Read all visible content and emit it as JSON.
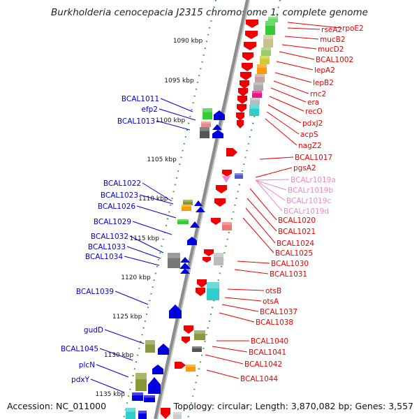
{
  "title": "Burkholderia cenocepacia J2315 chromosome 1, complete genome",
  "footer": {
    "accession": "Accession: NC_011000",
    "summary": "Topology: circular; Length: 3,870,082 bp; Genes: 3,557"
  },
  "colors": {
    "backbone": "#8c8c8c",
    "ticks": "#2e9e2e",
    "left_genes": "#0000dd",
    "right_genes": "#ee0000",
    "rna_genes": "#ee88cc"
  },
  "scale_labels": [
    "1090 kbp",
    "1095 kbp",
    "1100 kbp",
    "1105 kbp",
    "1110 kbp",
    "1115 kbp",
    "1120 kbp",
    "1125 kbp",
    "1130 kbp",
    "1135 kbp"
  ],
  "left_labels": [
    "BCAL1011",
    "efp2",
    "BCAL1013",
    "BCAL1022",
    "BCAL1023",
    "BCAL1026",
    "BCAL1029",
    "BCAL1032",
    "BCAL1033",
    "BCAL1034",
    "BCAL1039",
    "gudD",
    "BCAL1045",
    "plcN",
    "pdxY"
  ],
  "right_labels": [
    "rpoE2",
    "rseA2",
    "mucB2",
    "mucD2",
    "BCAL1002",
    "lepA2",
    "lepB2",
    "rnc2",
    "era",
    "recO",
    "pdxJ2",
    "acpS",
    "nagZ2",
    "BCAL1017",
    "pgsA2",
    "BCAL1020",
    "BCAL1021",
    "BCAL1024",
    "BCAL1025",
    "BCAL1030",
    "BCAL1031",
    "otsB",
    "otsA",
    "BCAL1037",
    "BCAL1038",
    "BCAL1040",
    "BCAL1041",
    "BCAL1042",
    "BCAL1044"
  ],
  "rna_labels": [
    "BCALr1019a",
    "BCALr1019b",
    "BCALr1019c",
    "BCALr1019d"
  ]
}
